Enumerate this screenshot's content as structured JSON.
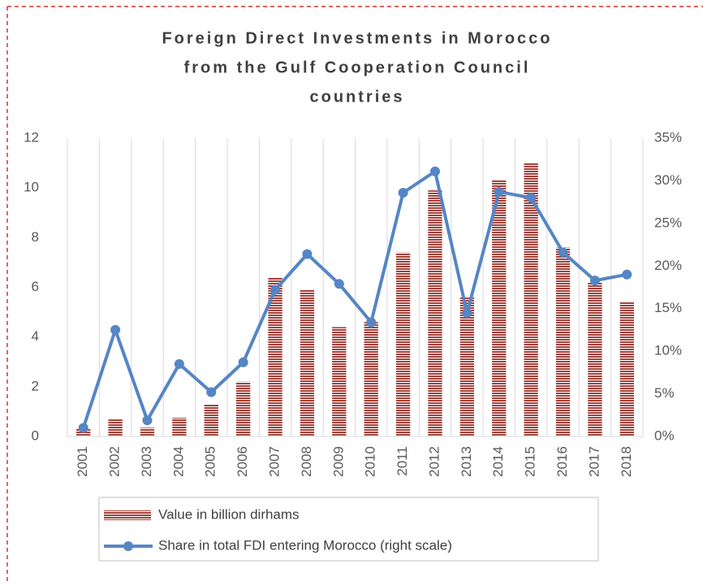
{
  "chart_data": {
    "type": "bar_line",
    "title": [
      "Foreign Direct Investments in Morocco",
      "from the Gulf Cooperation Council",
      "countries"
    ],
    "categories": [
      "2001",
      "2002",
      "2003",
      "2004",
      "2005",
      "2006",
      "2007",
      "2008",
      "2009",
      "2010",
      "2011",
      "2012",
      "2013",
      "2014",
      "2015",
      "2016",
      "2017",
      "2018"
    ],
    "series": [
      {
        "name": "Value in billion dirhams",
        "type": "bar",
        "color": "#a3413a",
        "values": [
          0.3,
          0.7,
          0.35,
          0.75,
          1.3,
          2.2,
          6.4,
          5.9,
          4.4,
          4.6,
          7.4,
          9.9,
          5.6,
          10.3,
          11.0,
          7.6,
          6.2,
          5.4
        ]
      },
      {
        "name": "Share in total FDI entering Morocco (right scale)",
        "type": "line",
        "axis": "y2",
        "color": "#5585c5",
        "values": [
          1.0,
          12.5,
          1.9,
          8.5,
          5.2,
          8.7,
          17.2,
          21.4,
          17.9,
          13.4,
          28.6,
          31.1,
          14.5,
          28.7,
          28.0,
          21.6,
          18.3,
          19.0
        ]
      }
    ],
    "ylim": [
      0,
      12
    ],
    "yticks": [
      0,
      2,
      4,
      6,
      8,
      10,
      12
    ],
    "y2lim": [
      0,
      35
    ],
    "y2ticks": [
      {
        "value": 0,
        "label": "0%"
      },
      {
        "value": 5,
        "label": "5%"
      },
      {
        "value": 10,
        "label": "10%"
      },
      {
        "value": 15,
        "label": "15%"
      },
      {
        "value": 20,
        "label": "20%"
      },
      {
        "value": 25,
        "label": "25%"
      },
      {
        "value": 30,
        "label": "30%"
      },
      {
        "value": 35,
        "label": "35%"
      }
    ],
    "grid": "x",
    "legend": "bottom"
  }
}
